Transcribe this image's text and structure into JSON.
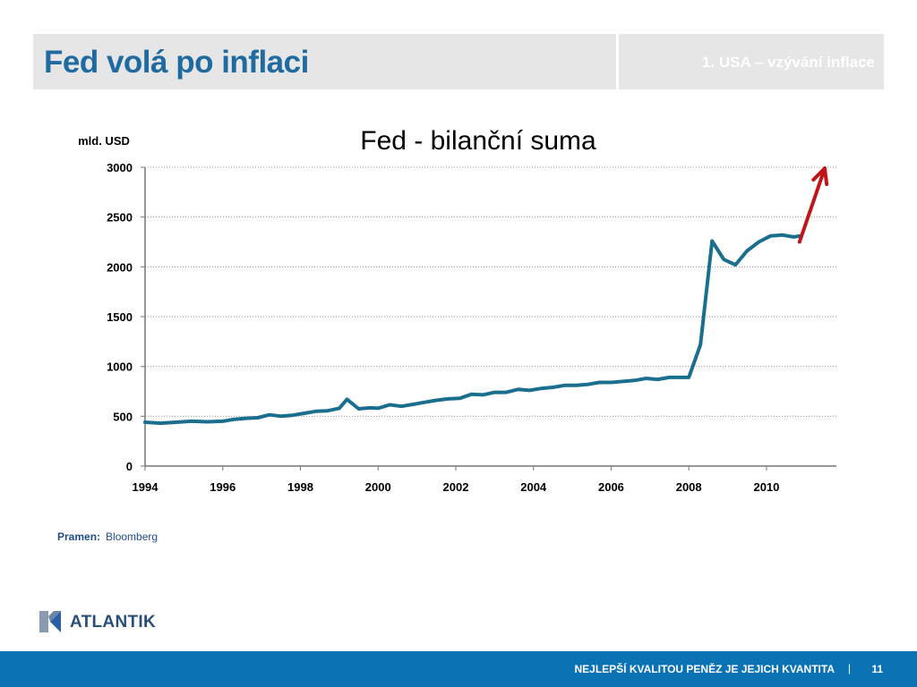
{
  "header": {
    "title": "Fed volá po inflaci",
    "section": "1. USA – vzývání inflace"
  },
  "chart_data": {
    "type": "line",
    "title": "Fed - bilanční suma",
    "ylabel": "mld. USD",
    "xlabel": "",
    "xlim": [
      1994,
      2011.8
    ],
    "ylim": [
      0,
      3000
    ],
    "yticks": [
      0,
      500,
      1000,
      1500,
      2000,
      2500,
      3000
    ],
    "xticks": [
      1994,
      1996,
      1998,
      2000,
      2002,
      2004,
      2006,
      2008,
      2010
    ],
    "grid": true,
    "line_color": "#1a6f8e",
    "arrow_color": "#c0151b",
    "series": [
      {
        "x": [
          1994.0,
          1994.4,
          1994.8,
          1995.2,
          1995.6,
          1996.0,
          1996.3,
          1996.6,
          1996.9,
          1997.2,
          1997.5,
          1997.8,
          1998.1,
          1998.4,
          1998.7,
          1999.0,
          1999.2,
          1999.5,
          1999.8,
          2000.0,
          2000.3,
          2000.6,
          2000.9,
          2001.2,
          2001.5,
          2001.8,
          2002.1,
          2002.4,
          2002.7,
          2003.0,
          2003.3,
          2003.6,
          2003.9,
          2004.2,
          2004.5,
          2004.8,
          2005.1,
          2005.4,
          2005.7,
          2006.0,
          2006.3,
          2006.6,
          2006.9,
          2007.2,
          2007.5,
          2007.8,
          2008.0,
          2008.3,
          2008.6,
          2008.9,
          2009.2,
          2009.5,
          2009.8,
          2010.1,
          2010.4,
          2010.7,
          2010.85
        ],
        "values": [
          440,
          430,
          440,
          450,
          445,
          450,
          470,
          480,
          485,
          515,
          500,
          510,
          530,
          550,
          555,
          580,
          670,
          575,
          585,
          580,
          615,
          600,
          620,
          640,
          660,
          675,
          680,
          720,
          715,
          740,
          740,
          770,
          760,
          780,
          790,
          810,
          810,
          820,
          840,
          840,
          850,
          860,
          880,
          870,
          890,
          890,
          890,
          1220,
          2260,
          2075,
          2020,
          2160,
          2250,
          2310,
          2320,
          2300,
          2310
        ]
      }
    ],
    "arrow": {
      "from": [
        2010.85,
        2250
      ],
      "to": [
        2011.5,
        2990
      ]
    }
  },
  "source": {
    "label": "Pramen:",
    "value": "Bloomberg"
  },
  "logo": {
    "text": "ATLANTIK"
  },
  "footer": {
    "tagline": "NEJLEPŠÍ KVALITOU PENĚZ JE JEJICH KVANTITA",
    "separator": "|",
    "page": "11"
  }
}
